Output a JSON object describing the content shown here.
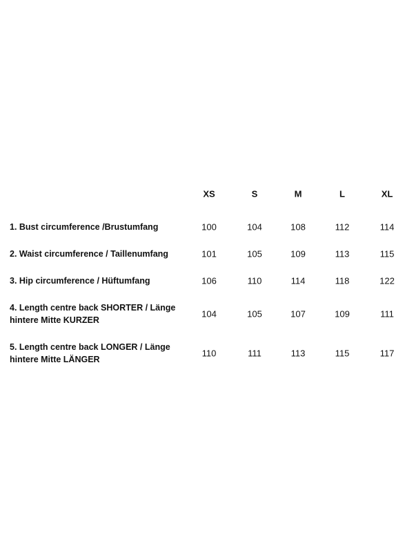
{
  "table": {
    "columns": [
      "XS",
      "S",
      "M",
      "L",
      "XL"
    ],
    "rows": [
      {
        "label": "1. Bust circumference /Brustumfang",
        "values": [
          "100",
          "104",
          "108",
          "112",
          "114"
        ]
      },
      {
        "label": "2. Waist circumference / Taillenumfang",
        "values": [
          "101",
          "105",
          "109",
          "113",
          "115"
        ]
      },
      {
        "label": "3. Hip circumference / Hüftumfang",
        "values": [
          "106",
          "110",
          "114",
          "118",
          "122"
        ]
      },
      {
        "label": "4. Length centre back SHORTER / Länge hintere Mitte KURZER",
        "values": [
          "104",
          "105",
          "107",
          "109",
          "111"
        ]
      },
      {
        "label": "5. Length centre back LONGER / Länge hintere Mitte LÄNGER",
        "values": [
          "110",
          "111",
          "113",
          "115",
          "117"
        ]
      }
    ]
  }
}
